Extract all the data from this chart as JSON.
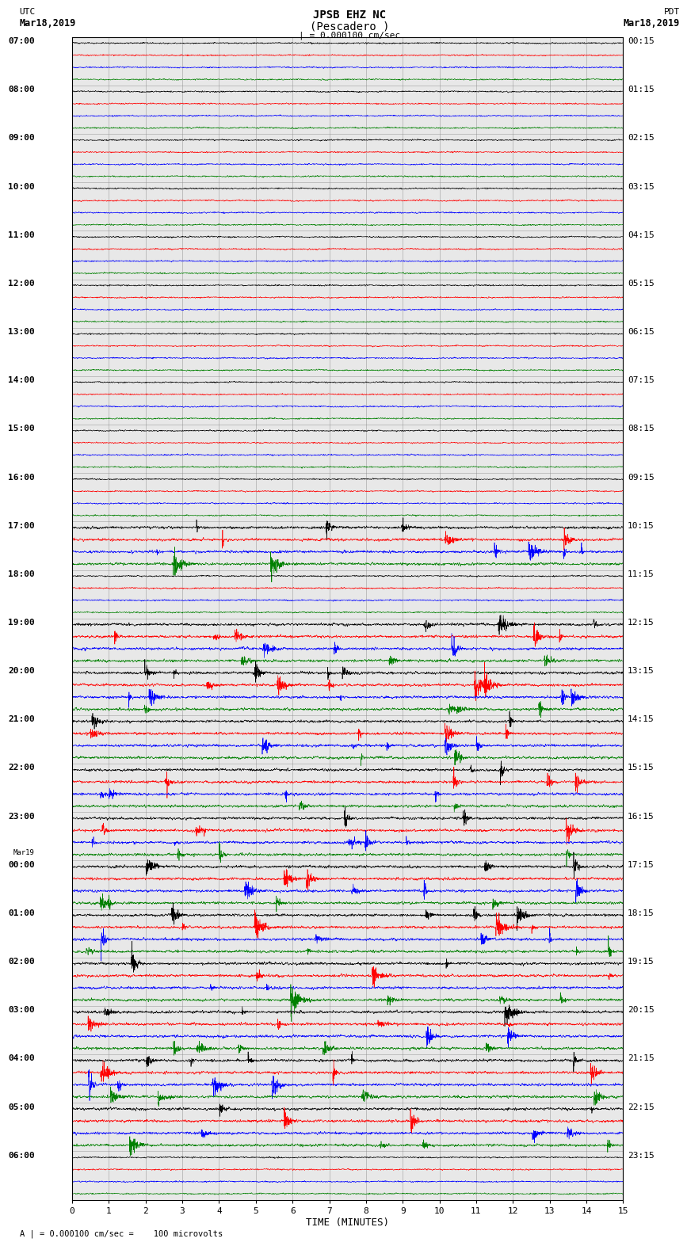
{
  "title_line1": "JPSB EHZ NC",
  "title_line2": "(Pescadero )",
  "scale_text": "| = 0.000100 cm/sec",
  "bottom_text": "A | = 0.000100 cm/sec =    100 microvolts",
  "left_header1": "UTC",
  "left_header2": "Mar18,2019",
  "right_header1": "PDT",
  "right_header2": "Mar18,2019",
  "left_date2": "Mar19",
  "xlabel": "TIME (MINUTES)",
  "xmin": 0,
  "xmax": 15,
  "xticks": [
    0,
    1,
    2,
    3,
    4,
    5,
    6,
    7,
    8,
    9,
    10,
    11,
    12,
    13,
    14,
    15
  ],
  "num_rows": 24,
  "traces_per_row": 4,
  "colors": [
    "black",
    "red",
    "blue",
    "green"
  ],
  "utc_times": [
    "07:00",
    "08:00",
    "09:00",
    "10:00",
    "11:00",
    "12:00",
    "13:00",
    "14:00",
    "15:00",
    "16:00",
    "17:00",
    "18:00",
    "19:00",
    "20:00",
    "21:00",
    "22:00",
    "23:00",
    "00:00",
    "01:00",
    "02:00",
    "03:00",
    "04:00",
    "05:00",
    "06:00"
  ],
  "pdt_times": [
    "00:15",
    "01:15",
    "02:15",
    "03:15",
    "04:15",
    "05:15",
    "06:15",
    "07:15",
    "08:15",
    "09:15",
    "10:15",
    "11:15",
    "12:15",
    "13:15",
    "14:15",
    "15:15",
    "16:15",
    "17:15",
    "18:15",
    "19:15",
    "20:15",
    "21:15",
    "22:15",
    "23:15"
  ],
  "bg_color": "#f0f0f0",
  "plot_bg_color": "#e8e8e8",
  "trace_amplitude": 0.38,
  "noise_scale_base": 0.13,
  "event_rows": [
    10,
    12,
    13,
    14,
    15,
    16,
    17,
    18,
    19,
    20,
    21,
    22
  ],
  "quiet_rows": [
    0,
    1,
    2,
    3,
    4,
    5,
    6,
    7,
    8,
    9,
    11,
    23
  ],
  "vline_color": "#aaaaaa",
  "vgrid_color": "#aaaaaa"
}
